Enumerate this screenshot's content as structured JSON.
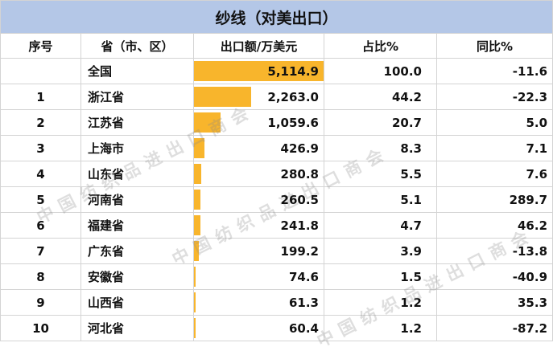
{
  "title": "纱线（对美出口）",
  "headers": [
    "序号",
    "省（市、区）",
    "出口额/万美元",
    "占比%",
    "同比%"
  ],
  "rows": [
    {
      "rank": "",
      "province": "全国",
      "value": "5,114.9",
      "share": "100.0",
      "yoy": "-11.6",
      "bar_fraction": 1.0
    },
    {
      "rank": "1",
      "province": "浙江省",
      "value": "2,263.0",
      "share": "44.2",
      "yoy": "-22.3",
      "bar_fraction": 0.4424
    },
    {
      "rank": "2",
      "province": "江苏省",
      "value": "1,059.6",
      "share": "20.7",
      "yoy": "5.0",
      "bar_fraction": 0.2072
    },
    {
      "rank": "3",
      "province": "上海市",
      "value": "426.9",
      "share": "8.3",
      "yoy": "7.1",
      "bar_fraction": 0.0835
    },
    {
      "rank": "4",
      "province": "山东省",
      "value": "280.8",
      "share": "5.5",
      "yoy": "7.6",
      "bar_fraction": 0.0549
    },
    {
      "rank": "5",
      "province": "河南省",
      "value": "260.5",
      "share": "5.1",
      "yoy": "289.7",
      "bar_fraction": 0.0509
    },
    {
      "rank": "6",
      "province": "福建省",
      "value": "241.8",
      "share": "4.7",
      "yoy": "46.2",
      "bar_fraction": 0.0473
    },
    {
      "rank": "7",
      "province": "广东省",
      "value": "199.2",
      "share": "3.9",
      "yoy": "-13.8",
      "bar_fraction": 0.0389
    },
    {
      "rank": "8",
      "province": "安徽省",
      "value": "74.6",
      "share": "1.5",
      "yoy": "-40.9",
      "bar_fraction": 0.0146
    },
    {
      "rank": "9",
      "province": "山西省",
      "value": "61.3",
      "share": "1.2",
      "yoy": "35.3",
      "bar_fraction": 0.012
    },
    {
      "rank": "10",
      "province": "河北省",
      "value": "60.4",
      "share": "1.2",
      "yoy": "-87.2",
      "bar_fraction": 0.0118
    }
  ],
  "watermark": "中国纺织品进出口商会",
  "colors": {
    "header_bg": "#b4c7e7",
    "bar": "#f8b52c",
    "grid": "#d4d4d4"
  }
}
